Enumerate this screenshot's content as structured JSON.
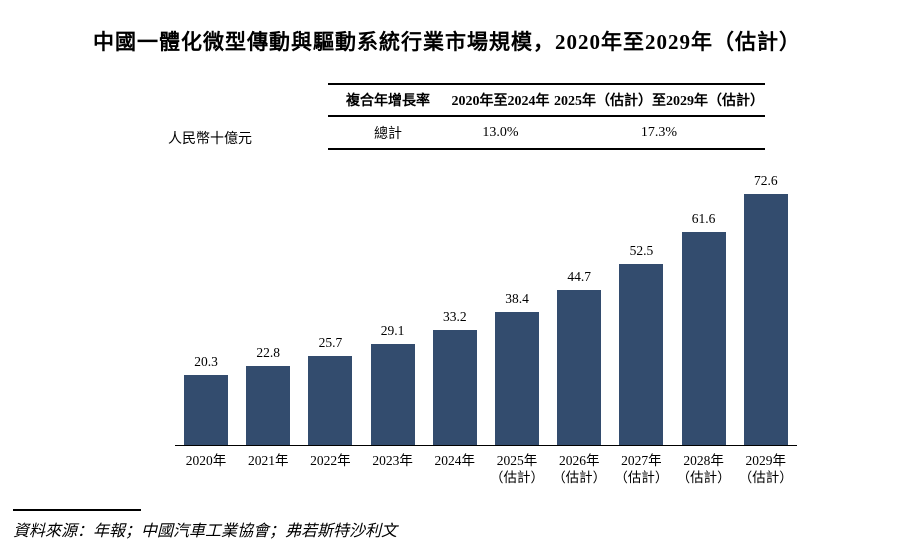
{
  "title": "中國一體化微型傳動與驅動系統行業市場規模，2020年至2029年（估計）",
  "unit_label": "人民幣十億元",
  "cagr_table": {
    "headers": [
      "複合年增長率",
      "2020年至2024年",
      "2025年（估計）至2029年（估計）"
    ],
    "rows": [
      [
        "總計",
        "13.0%",
        "17.3%"
      ]
    ]
  },
  "chart_data": {
    "type": "bar",
    "categories": [
      "2020年",
      "2021年",
      "2022年",
      "2023年",
      "2024年",
      "2025年（估計）",
      "2026年（估計）",
      "2027年（估計）",
      "2028年（估計）",
      "2029年（估計）"
    ],
    "values": [
      20.3,
      22.8,
      25.7,
      29.1,
      33.2,
      38.4,
      44.7,
      52.5,
      61.6,
      72.6
    ],
    "title": "中國一體化微型傳動與驅動系統行業市場規模，2020年至2029年（估計）",
    "xlabel": "",
    "ylabel": "人民幣十億元",
    "ylim": [
      0,
      77
    ],
    "grid": false,
    "legend": false,
    "data_labels": true,
    "bar_color": "#334c6e"
  },
  "source": "資料來源：年報；中國汽車工業協會；弗若斯特沙利文",
  "colors": {
    "bar": "#334c6e",
    "text": "#000000",
    "rule": "#000000",
    "background": "#ffffff"
  }
}
